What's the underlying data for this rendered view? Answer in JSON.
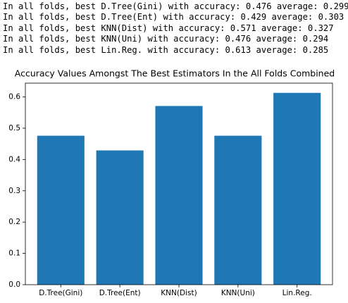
{
  "output_lines": [
    "In all folds, best D.Tree(Gini) with accuracy: 0.476 average: 0.299",
    "In all folds, best D.Tree(Ent) with accuracy: 0.429 average: 0.303",
    "In all folds, best KNN(Dist) with accuracy: 0.571 average: 0.327",
    "In all folds, best KNN(Uni) with accuracy: 0.476 average: 0.294",
    "In all folds, best Lin.Reg. with accuracy: 0.613 average: 0.285"
  ],
  "chart_data": {
    "type": "bar",
    "title": "Accuracy Values Amongst The Best Estimators In the All Folds Combined",
    "categories": [
      "D.Tree(Gini)",
      "D.Tree(Ent)",
      "KNN(Dist)",
      "KNN(Uni)",
      "Lin.Reg."
    ],
    "values": [
      0.476,
      0.429,
      0.571,
      0.476,
      0.613
    ],
    "color": "#1f77b4",
    "ylim": [
      0,
      0.644
    ],
    "yticks": [
      {
        "value": 0,
        "label": "0.0"
      },
      0.1,
      0.2,
      0.3,
      0.4,
      0.5,
      0.6
    ]
  }
}
